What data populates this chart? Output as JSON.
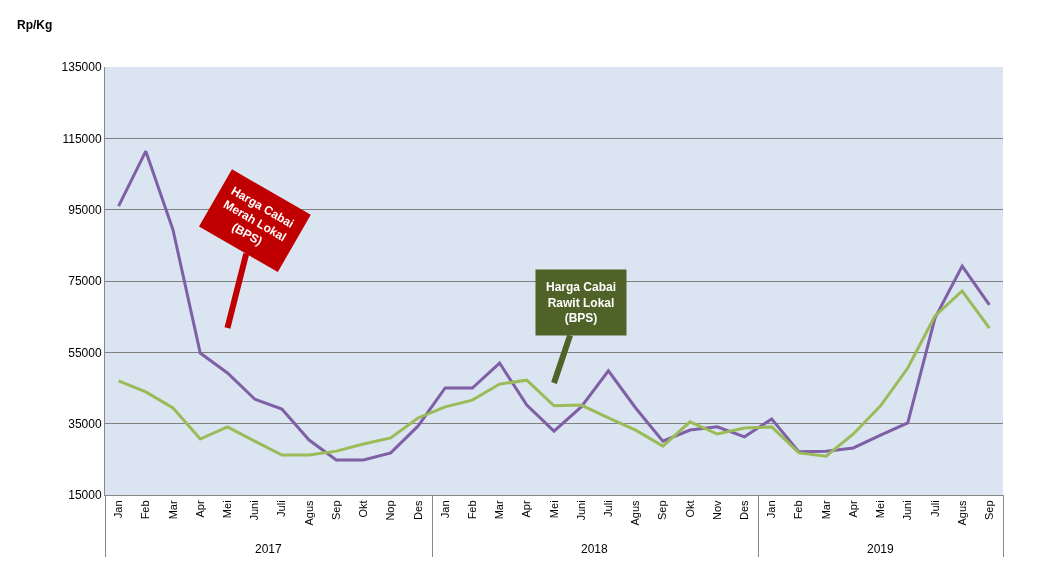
{
  "chart_data": {
    "type": "line",
    "ylabel": "Rp/Kg",
    "categories": [
      "Jan",
      "Feb",
      "Mar",
      "Apr",
      "Mei",
      "Juni",
      "Juli",
      "Agus",
      "Sep",
      "Okt",
      "Nop",
      "Des",
      "Jan",
      "Feb",
      "Mar",
      "Apr",
      "Mei",
      "Juni",
      "Juli",
      "Agus",
      "Sep",
      "Okt",
      "Nov",
      "Des",
      "Jan",
      "Feb",
      "Mar",
      "Apr",
      "Mei",
      "Juni",
      "Juli",
      "Agus",
      "Sep"
    ],
    "series": [
      {
        "color": "#7f5fa6",
        "values": [
          96000,
          111400,
          89300,
          54800,
          49200,
          41900,
          39100,
          30400,
          24800,
          24800,
          26800,
          34300,
          45000,
          45000,
          52000,
          40200,
          32900,
          39700,
          49800,
          39400,
          30100,
          33200,
          34100,
          31300,
          36300,
          27100,
          27300,
          28200,
          31800,
          35200,
          64600,
          79200,
          68300
        ]
      },
      {
        "color": "#9bbb59",
        "values": [
          47000,
          43900,
          39400,
          30700,
          34100,
          30100,
          26200,
          26200,
          27300,
          29300,
          31000,
          36600,
          39700,
          41600,
          46100,
          47200,
          40000,
          40200,
          36600,
          33200,
          28700,
          35500,
          32100,
          33800,
          34100,
          26800,
          25900,
          32100,
          40000,
          50600,
          65200,
          72200,
          61800
        ]
      }
    ],
    "annotations": [
      "Harga Cabai Merah Lokal (BPS)",
      "Harga Cabai Rawit Lokal (BPS)",
      "2017",
      "2018",
      "2019"
    ],
    "ylim": [
      15000,
      135000
    ],
    "yticks": [
      15000,
      35000,
      55000,
      75000,
      95000,
      115000,
      135000
    ],
    "grid": "y",
    "marker": "none",
    "line_style": "solid"
  }
}
